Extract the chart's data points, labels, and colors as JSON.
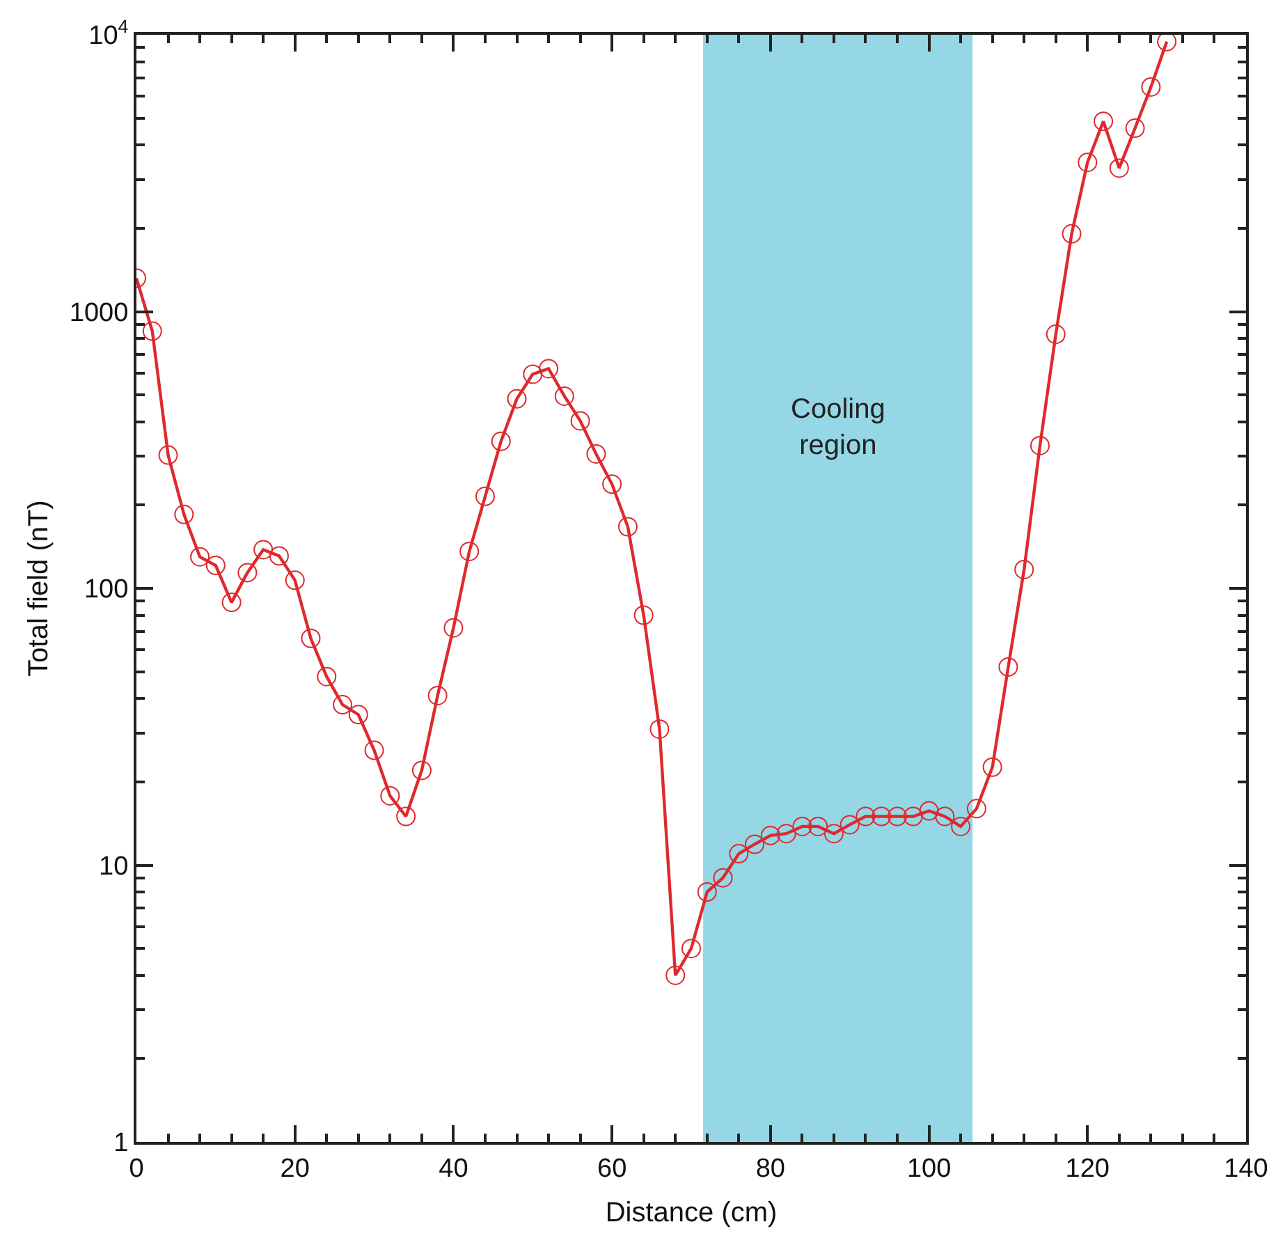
{
  "chart_data": {
    "type": "line",
    "xlabel": "Distance (cm)",
    "ylabel": "Total field (nT)",
    "log": "y",
    "grid": false,
    "marker": "circle",
    "line_style": "solid",
    "x": [
      0,
      2,
      4,
      6,
      8,
      10,
      12,
      14,
      16,
      18,
      20,
      22,
      24,
      26,
      28,
      30,
      32,
      34,
      36,
      38,
      40,
      42,
      44,
      46,
      48,
      50,
      52,
      54,
      56,
      58,
      60,
      62,
      64,
      66,
      68,
      70,
      72,
      74,
      76,
      78,
      80,
      82,
      84,
      86,
      88,
      90,
      92,
      94,
      96,
      98,
      100,
      102,
      104,
      106,
      108,
      110,
      112,
      114,
      116,
      118,
      120,
      122,
      124,
      126,
      128,
      130
    ],
    "series": [
      {
        "color": "#de2a2e",
        "values": [
          1320,
          850,
          303,
          185,
          130,
          121,
          89,
          114,
          138,
          131,
          107,
          66,
          48,
          38,
          35,
          26,
          17.8,
          15,
          22,
          41,
          72,
          136,
          215,
          340,
          484,
          594,
          622,
          495,
          403,
          306,
          238,
          167,
          80,
          31,
          4.0,
          5.0,
          8.0,
          9.0,
          11,
          11.9,
          12.8,
          13,
          13.8,
          13.8,
          13,
          14,
          15,
          15,
          15,
          15,
          15.7,
          15,
          13.8,
          16,
          22.6,
          52,
          117,
          328,
          828,
          1910,
          3460,
          4870,
          3300,
          4600,
          6480,
          9450
        ]
      }
    ],
    "xlim": [
      0,
      140
    ],
    "xticks": [
      0,
      {
        "value": 4,
        "label": null
      },
      {
        "value": 8,
        "label": null
      },
      {
        "value": 12,
        "label": null
      },
      {
        "value": 16,
        "label": null
      },
      20,
      {
        "value": 24,
        "label": null
      },
      {
        "value": 28,
        "label": null
      },
      {
        "value": 32,
        "label": null
      },
      {
        "value": 36,
        "label": null
      },
      40,
      {
        "value": 44,
        "label": null
      },
      {
        "value": 48,
        "label": null
      },
      {
        "value": 52,
        "label": null
      },
      {
        "value": 56,
        "label": null
      },
      60,
      {
        "value": 64,
        "label": null
      },
      {
        "value": 68,
        "label": null
      },
      {
        "value": 72,
        "label": null
      },
      {
        "value": 76,
        "label": null
      },
      80,
      {
        "value": 84,
        "label": null
      },
      {
        "value": 88,
        "label": null
      },
      {
        "value": 92,
        "label": null
      },
      {
        "value": 96,
        "label": null
      },
      100,
      {
        "value": 104,
        "label": null
      },
      {
        "value": 108,
        "label": null
      },
      {
        "value": 112,
        "label": null
      },
      {
        "value": 116,
        "label": null
      },
      120,
      {
        "value": 124,
        "label": null
      },
      {
        "value": 128,
        "label": null
      },
      {
        "value": 132,
        "label": null
      },
      {
        "value": 136,
        "label": null
      },
      140
    ],
    "ylim": [
      1,
      10000
    ],
    "yticks": [
      1,
      {
        "value": 2,
        "label": null
      },
      {
        "value": 3,
        "label": null
      },
      {
        "value": 4,
        "label": null
      },
      {
        "value": 5,
        "label": null
      },
      {
        "value": 6,
        "label": null
      },
      {
        "value": 7,
        "label": null
      },
      {
        "value": 8,
        "label": null
      },
      {
        "value": 9,
        "label": null
      },
      10,
      {
        "value": 20,
        "label": null
      },
      {
        "value": 30,
        "label": null
      },
      {
        "value": 40,
        "label": null
      },
      {
        "value": 50,
        "label": null
      },
      {
        "value": 60,
        "label": null
      },
      {
        "value": 70,
        "label": null
      },
      {
        "value": 80,
        "label": null
      },
      {
        "value": 90,
        "label": null
      },
      100,
      {
        "value": 200,
        "label": null
      },
      {
        "value": 300,
        "label": null
      },
      {
        "value": 400,
        "label": null
      },
      {
        "value": 500,
        "label": null
      },
      {
        "value": 600,
        "label": null
      },
      {
        "value": 700,
        "label": null
      },
      {
        "value": 800,
        "label": null
      },
      {
        "value": 900,
        "label": null
      },
      1000,
      {
        "value": 2000,
        "label": null
      },
      {
        "value": 3000,
        "label": null
      },
      {
        "value": 4000,
        "label": null
      },
      {
        "value": 5000,
        "label": null
      },
      {
        "value": 6000,
        "label": null
      },
      {
        "value": 7000,
        "label": null
      },
      {
        "value": 8000,
        "label": null
      },
      {
        "value": 9000,
        "label": null
      },
      {
        "value": 10000,
        "label": "10$^{4}$"
      }
    ],
    "bands": [
      {
        "axis": "x",
        "from": 71.5,
        "to": 105.5,
        "label": "Cooling\nregion",
        "color": "#95d7e5"
      }
    ]
  }
}
